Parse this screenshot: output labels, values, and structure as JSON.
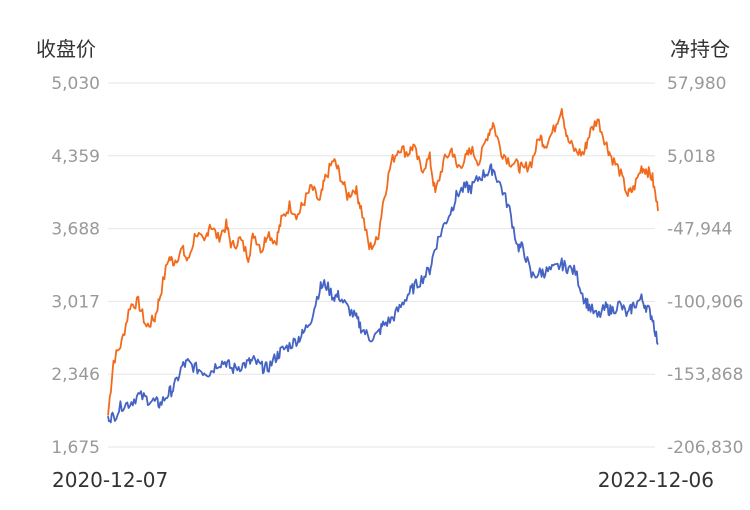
{
  "chart_data": {
    "type": "line",
    "left_axis_title": "收盘价",
    "right_axis_title": "净持仓",
    "x_start": "2020-12-07",
    "x_end": "2022-12-06",
    "left_ticks": [
      "5,030",
      "4,359",
      "3,688",
      "3,017",
      "2,346",
      "1,675"
    ],
    "right_ticks": [
      "57,980",
      "5,018",
      "-47,944",
      "-100,906",
      "-153,868",
      "-206,830"
    ],
    "left_range": [
      1675,
      5030
    ],
    "right_range": [
      -206830,
      57980
    ],
    "grid": true,
    "series": [
      {
        "axis": "left",
        "color": "#f26b1d",
        "x": [
          0,
          0.01,
          0.025,
          0.04,
          0.055,
          0.07,
          0.085,
          0.095,
          0.11,
          0.12,
          0.135,
          0.145,
          0.16,
          0.175,
          0.185,
          0.2,
          0.215,
          0.225,
          0.24,
          0.255,
          0.265,
          0.28,
          0.29,
          0.305,
          0.315,
          0.33,
          0.345,
          0.355,
          0.37,
          0.385,
          0.395,
          0.41,
          0.42,
          0.435,
          0.45,
          0.46,
          0.475,
          0.49,
          0.5,
          0.515,
          0.53,
          0.545,
          0.555,
          0.57,
          0.585,
          0.595,
          0.61,
          0.625,
          0.635,
          0.65,
          0.66,
          0.675,
          0.69,
          0.7,
          0.715,
          0.73,
          0.745,
          0.755,
          0.77,
          0.785,
          0.795,
          0.81,
          0.825,
          0.835,
          0.85,
          0.865,
          0.875,
          0.89,
          0.905,
          0.915,
          0.93,
          0.945,
          0.955,
          0.97,
          0.98,
          0.99,
          1.0
        ],
        "y": [
          1965,
          2470,
          2640,
          2980,
          3010,
          2780,
          2860,
          3080,
          3420,
          3380,
          3500,
          3380,
          3660,
          3540,
          3740,
          3600,
          3720,
          3520,
          3590,
          3430,
          3640,
          3490,
          3660,
          3560,
          3760,
          3900,
          3810,
          3920,
          4070,
          3930,
          4150,
          4320,
          4210,
          3990,
          4060,
          3880,
          3510,
          3580,
          3930,
          4300,
          4440,
          4380,
          4450,
          4230,
          4340,
          4010,
          4300,
          4420,
          4250,
          4330,
          4420,
          4300,
          4550,
          4660,
          4400,
          4310,
          4270,
          4230,
          4300,
          4540,
          4460,
          4590,
          4810,
          4510,
          4400,
          4380,
          4560,
          4700,
          4480,
          4350,
          4220,
          4000,
          4050,
          4250,
          4230,
          4150,
          3850
        ]
      },
      {
        "axis": "left",
        "color": "#4563c3",
        "x": [
          0,
          0.01,
          0.025,
          0.04,
          0.055,
          0.07,
          0.085,
          0.095,
          0.11,
          0.12,
          0.135,
          0.145,
          0.16,
          0.175,
          0.185,
          0.2,
          0.215,
          0.225,
          0.24,
          0.255,
          0.265,
          0.28,
          0.29,
          0.305,
          0.315,
          0.33,
          0.345,
          0.355,
          0.37,
          0.385,
          0.395,
          0.41,
          0.42,
          0.435,
          0.45,
          0.46,
          0.475,
          0.49,
          0.5,
          0.515,
          0.53,
          0.545,
          0.555,
          0.57,
          0.585,
          0.595,
          0.61,
          0.625,
          0.635,
          0.65,
          0.66,
          0.675,
          0.69,
          0.7,
          0.715,
          0.73,
          0.745,
          0.755,
          0.77,
          0.785,
          0.795,
          0.81,
          0.825,
          0.835,
          0.85,
          0.865,
          0.875,
          0.89,
          0.905,
          0.915,
          0.93,
          0.945,
          0.955,
          0.97,
          0.98,
          0.99,
          1.0
        ],
        "y": [
          1960,
          1950,
          2060,
          2080,
          2150,
          2120,
          2090,
          2070,
          2170,
          2220,
          2420,
          2450,
          2400,
          2370,
          2360,
          2450,
          2460,
          2390,
          2420,
          2450,
          2470,
          2410,
          2400,
          2500,
          2560,
          2610,
          2670,
          2720,
          2870,
          3140,
          3180,
          3060,
          3070,
          2960,
          2870,
          2780,
          2680,
          2710,
          2800,
          2850,
          2950,
          3080,
          3140,
          3220,
          3310,
          3520,
          3710,
          3870,
          4010,
          4070,
          4060,
          4160,
          4210,
          4240,
          4070,
          3860,
          3520,
          3510,
          3250,
          3280,
          3290,
          3310,
          3360,
          3330,
          3290,
          3050,
          2970,
          2870,
          2960,
          2930,
          2990,
          2890,
          2980,
          3040,
          2960,
          2870,
          2620
        ]
      }
    ]
  }
}
